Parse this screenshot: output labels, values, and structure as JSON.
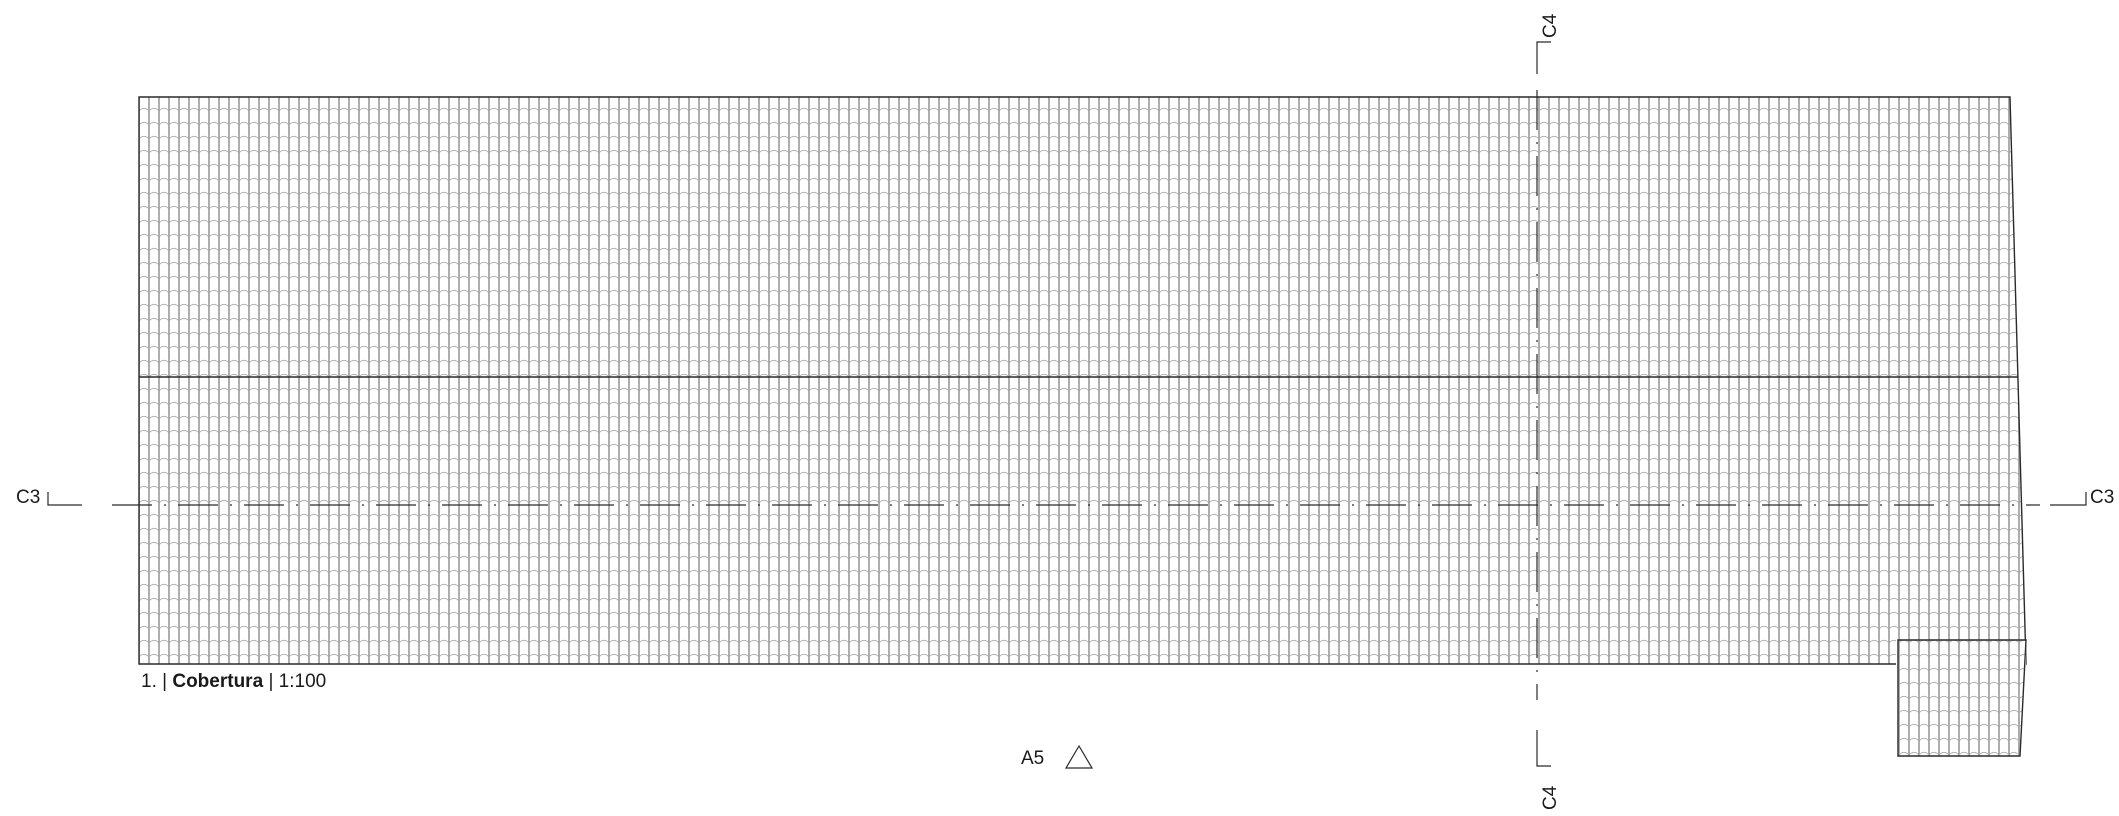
{
  "sections": {
    "c3_left": "C3",
    "c3_right": "C3",
    "c4_top": "C4",
    "c4_bottom": "C4"
  },
  "elevation_marker": {
    "label": "A5",
    "icon": "triangle-up-icon"
  },
  "caption": {
    "number": "1.",
    "separator": "|",
    "title": "Cobertura",
    "scale": "1:100"
  }
}
